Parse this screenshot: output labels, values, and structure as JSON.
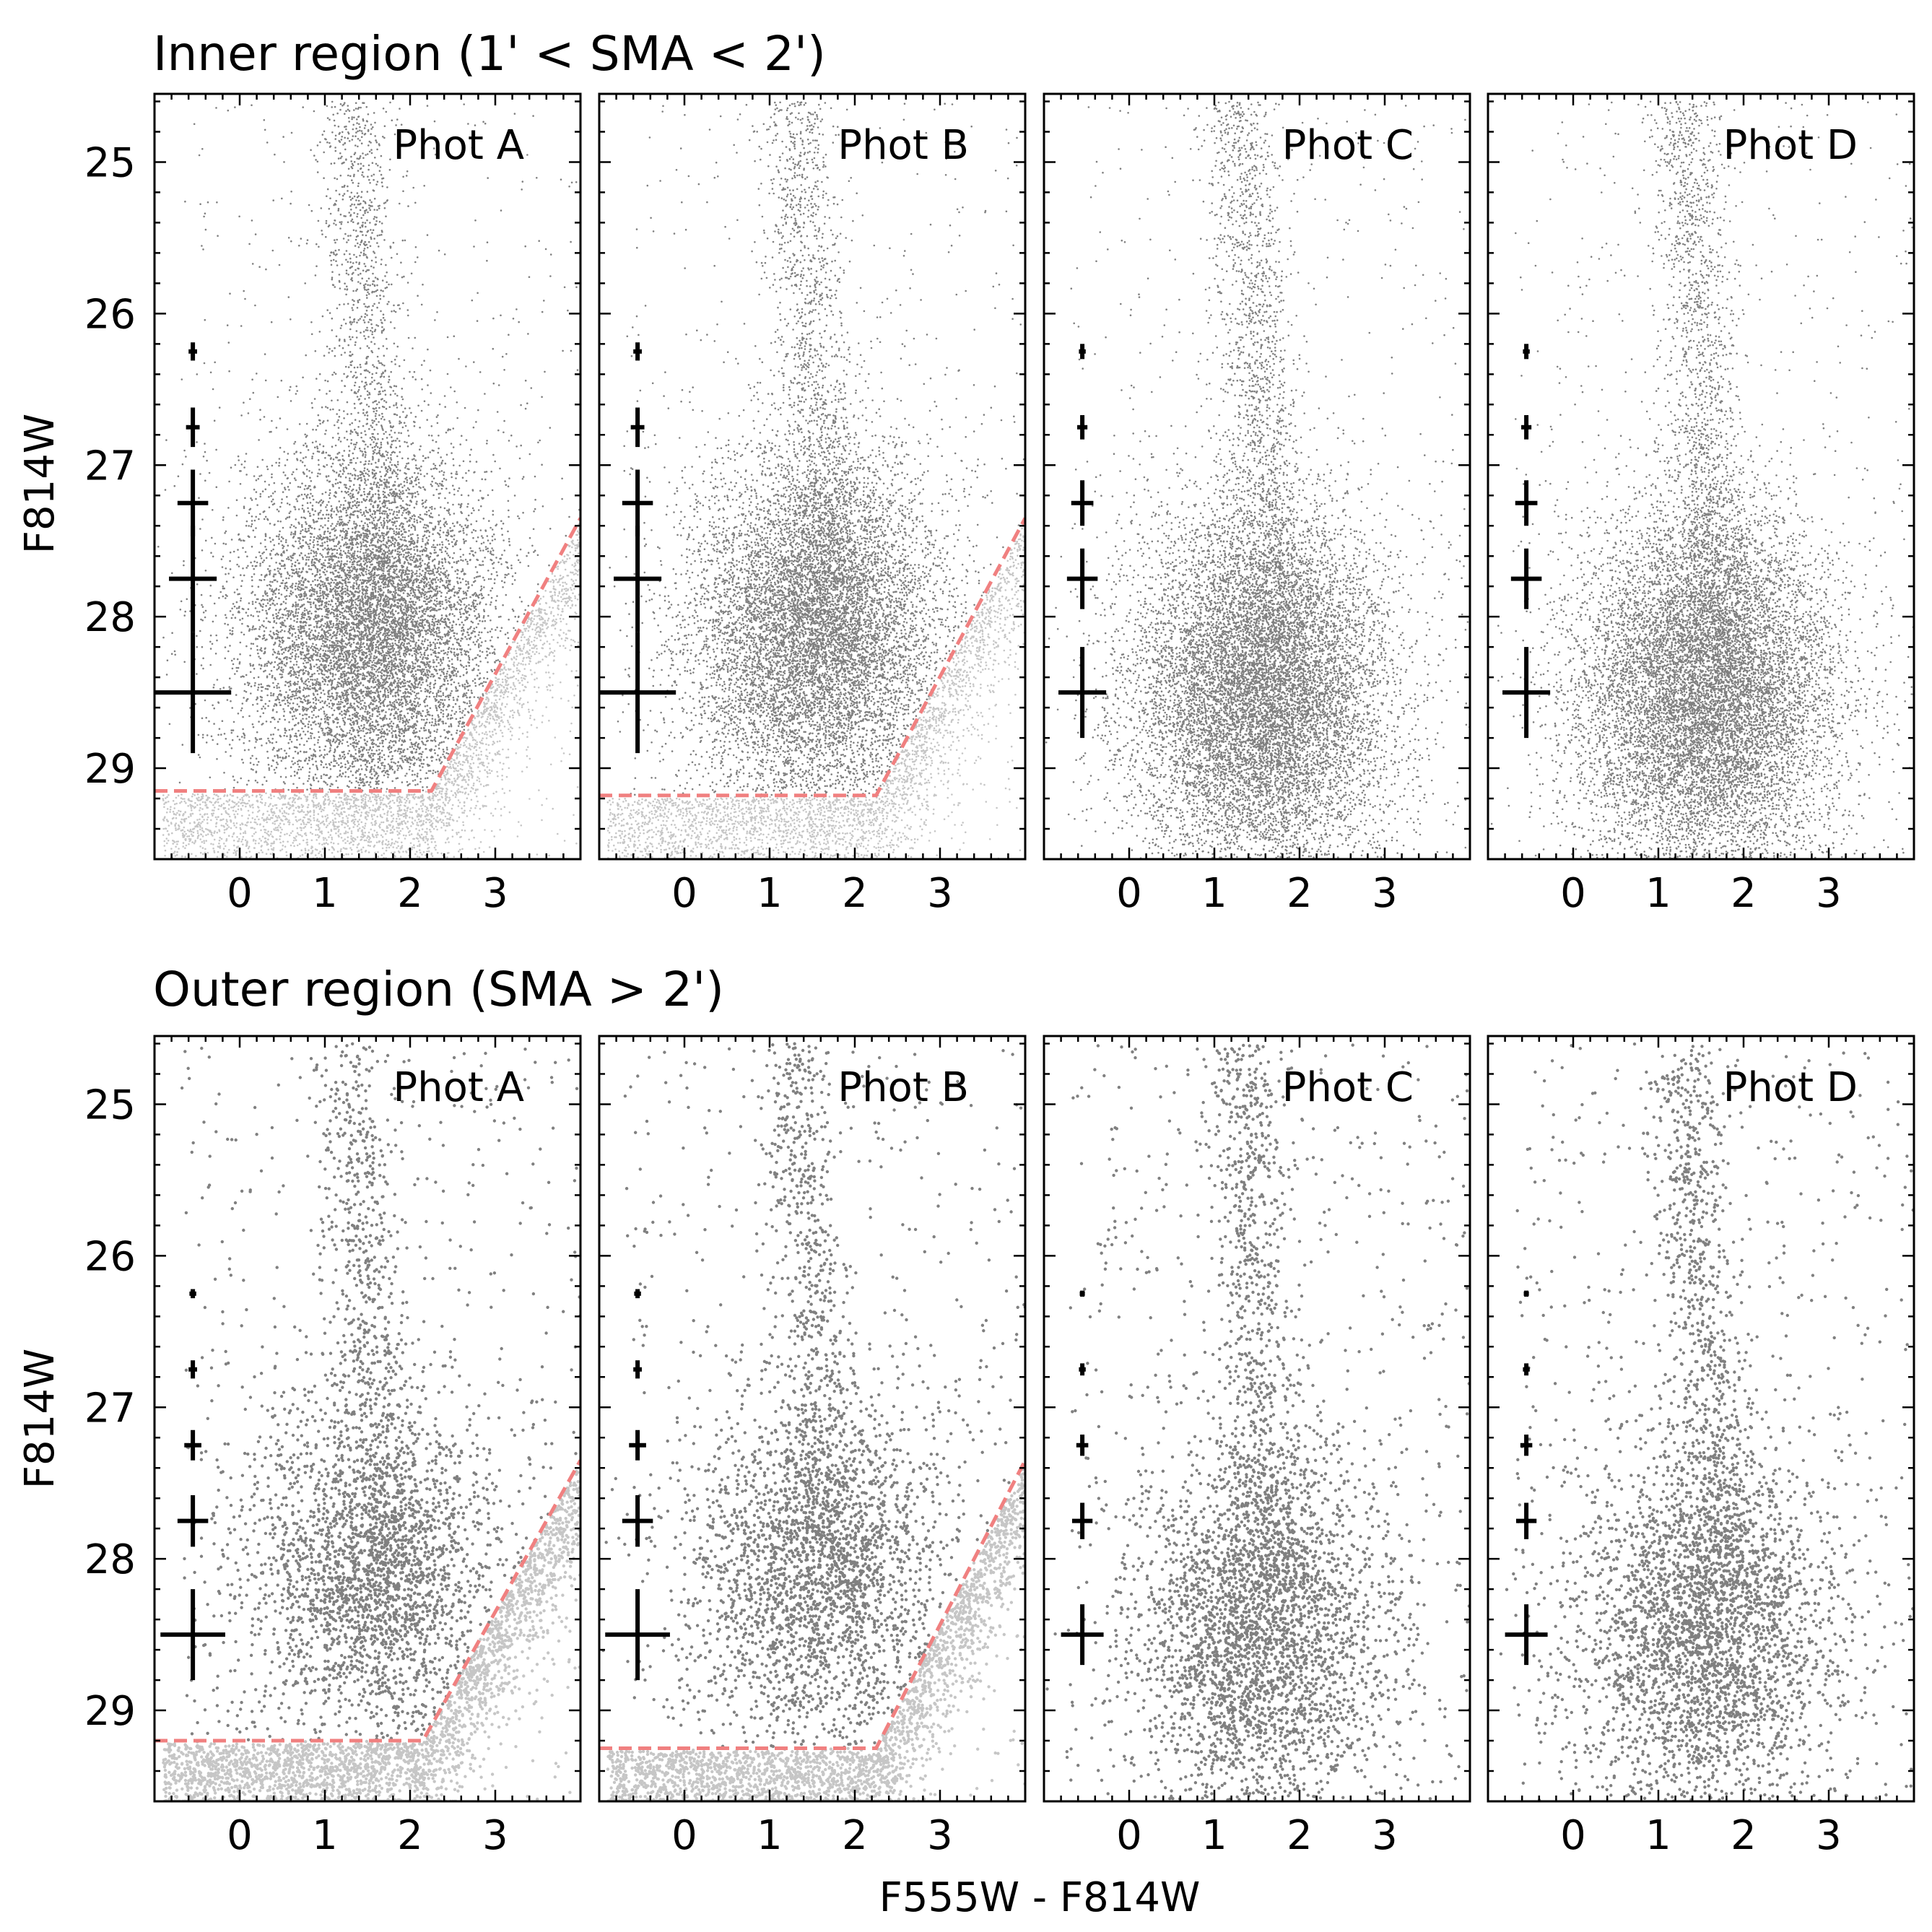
{
  "figure": {
    "xlabel": "F555W - F814W",
    "ylabel": "F814W"
  },
  "colors": {
    "bright": "#808080",
    "faint": "#c6c6c6",
    "cut_line": "#f08080",
    "error_bars": "#000000",
    "frame": "#000000",
    "background": "#ffffff"
  },
  "chart_data": [
    {
      "type": "scatter",
      "row_title": "Inner region (1' < SMA < 2')",
      "xlim": [
        -1.0,
        4.0
      ],
      "ylim": [
        29.6,
        24.55
      ],
      "xticks": [
        0,
        1,
        2,
        3
      ],
      "yticks": [
        25,
        26,
        27,
        28,
        29
      ],
      "error_bars": {
        "color": -0.55,
        "mag": [
          26.25,
          26.75,
          27.25,
          27.75,
          28.5
        ]
      },
      "panels": [
        {
          "label": "Phot A",
          "density": 1.0,
          "cut": [
            [
              -1.0,
              29.15
            ],
            [
              2.25,
              29.15
            ],
            [
              4.0,
              27.35
            ]
          ],
          "error_bars": {
            "xerr": [
              0.05,
              0.08,
              0.18,
              0.28,
              0.45
            ],
            "yerr": [
              0.06,
              0.13,
              0.22,
              0.35,
              0.4
            ]
          }
        },
        {
          "label": "Phot B",
          "density": 1.0,
          "cut": [
            [
              -1.0,
              29.18
            ],
            [
              2.25,
              29.18
            ],
            [
              4.0,
              27.35
            ]
          ],
          "error_bars": {
            "xerr": [
              0.05,
              0.08,
              0.18,
              0.28,
              0.45
            ],
            "yerr": [
              0.06,
              0.13,
              0.22,
              0.35,
              0.4
            ]
          }
        },
        {
          "label": "Phot C",
          "density": 1.15,
          "cut": null,
          "error_bars": {
            "xerr": [
              0.04,
              0.06,
              0.13,
              0.18,
              0.28
            ],
            "yerr": [
              0.05,
              0.08,
              0.15,
              0.2,
              0.3
            ]
          }
        },
        {
          "label": "Phot D",
          "density": 1.15,
          "cut": null,
          "error_bars": {
            "xerr": [
              0.04,
              0.06,
              0.13,
              0.18,
              0.28
            ],
            "yerr": [
              0.05,
              0.08,
              0.15,
              0.2,
              0.3
            ]
          }
        }
      ]
    },
    {
      "type": "scatter",
      "row_title": "Outer region (SMA > 2')",
      "xlim": [
        -1.0,
        4.0
      ],
      "ylim": [
        29.6,
        24.55
      ],
      "xticks": [
        0,
        1,
        2,
        3
      ],
      "yticks": [
        25,
        26,
        27,
        28,
        29
      ],
      "error_bars": {
        "color": -0.55,
        "mag": [
          26.25,
          26.75,
          27.25,
          27.75,
          28.5
        ]
      },
      "panels": [
        {
          "label": "Phot A",
          "density": 0.1,
          "cut": [
            [
              -1.0,
              29.2
            ],
            [
              2.15,
              29.2
            ],
            [
              4.0,
              27.35
            ]
          ],
          "error_bars": {
            "xerr": [
              0.04,
              0.05,
              0.1,
              0.18,
              0.38
            ],
            "yerr": [
              0.03,
              0.06,
              0.1,
              0.17,
              0.3
            ]
          }
        },
        {
          "label": "Phot B",
          "density": 0.1,
          "cut": [
            [
              -1.0,
              29.25
            ],
            [
              2.25,
              29.25
            ],
            [
              4.0,
              27.35
            ]
          ],
          "error_bars": {
            "xerr": [
              0.04,
              0.05,
              0.1,
              0.18,
              0.38
            ],
            "yerr": [
              0.03,
              0.06,
              0.1,
              0.17,
              0.3
            ]
          }
        },
        {
          "label": "Phot C",
          "density": 0.12,
          "cut": null,
          "error_bars": {
            "xerr": [
              0.03,
              0.04,
              0.07,
              0.12,
              0.25
            ],
            "yerr": [
              0.02,
              0.04,
              0.07,
              0.12,
              0.2
            ]
          }
        },
        {
          "label": "Phot D",
          "density": 0.12,
          "cut": null,
          "error_bars": {
            "xerr": [
              0.03,
              0.04,
              0.07,
              0.12,
              0.25
            ],
            "yerr": [
              0.02,
              0.04,
              0.07,
              0.12,
              0.2
            ]
          }
        }
      ]
    }
  ]
}
